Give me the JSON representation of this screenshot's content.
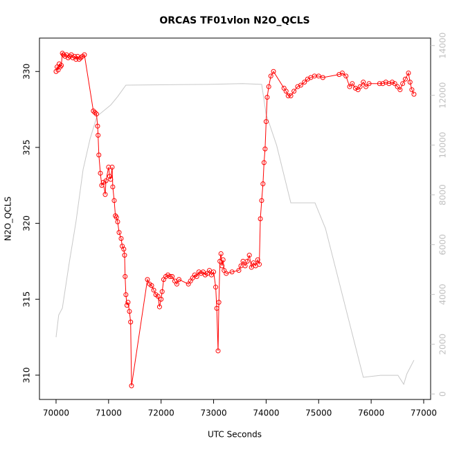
{
  "chart_data": {
    "type": "line",
    "title": "ORCAS TF01vlon N2O_QCLS",
    "x_label": "UTC Seconds",
    "y_label": "N2O_QCLS",
    "xlim": [
      69684,
      77132
    ],
    "xticks": [
      70000,
      71000,
      72000,
      73000,
      74000,
      75000,
      76000,
      77000
    ],
    "ylim": [
      308.4,
      332.2
    ],
    "yticks": [
      310,
      315,
      320,
      325,
      330
    ],
    "y2lim": [
      -220,
      14300
    ],
    "y2ticks": [
      0,
      2000,
      4000,
      6000,
      8000,
      10000,
      12000,
      14000
    ],
    "y2_color": "#c0c0c0",
    "series": [
      {
        "color": "#c8c8c8",
        "axis": "y2",
        "markers": false,
        "x": [
          70000,
          70050,
          70120,
          70250,
          70380,
          70515,
          70650,
          70780,
          71040,
          71170,
          71330,
          72890,
          73550,
          73915,
          74000,
          74200,
          74470,
          74930,
          75130,
          75850,
          76180,
          76510,
          76620,
          76680,
          76815
        ],
        "values": [
          2280,
          3170,
          3450,
          5260,
          6930,
          9020,
          10270,
          11160,
          11610,
          11940,
          12410,
          12440,
          12470,
          12440,
          11240,
          9990,
          7680,
          7680,
          6650,
          670,
          750,
          750,
          390,
          810,
          1360
        ]
      },
      {
        "color": "#ff0000",
        "markers": true,
        "x": [
          70000,
          70020,
          70040,
          70060,
          70080,
          70100,
          70120,
          70140,
          70170,
          70200,
          70230,
          70260,
          70290,
          70320,
          70350,
          70380,
          70410,
          70440,
          70470,
          70500,
          70540,
          70710,
          70740,
          70770,
          70791,
          70800,
          70815,
          70844,
          70870,
          70900,
          70936,
          70950,
          71000,
          71020,
          71040,
          71068,
          71080,
          71107,
          71130,
          71150,
          71173,
          71200,
          71239,
          71260,
          71290,
          71305,
          71315,
          71330,
          71350,
          71370,
          71397,
          71420,
          71437,
          71740,
          71780,
          71820,
          71860,
          71900,
          71940,
          71970,
          72000,
          72020,
          72050,
          72090,
          72130,
          72170,
          72210,
          72260,
          72300,
          72340,
          72520,
          72560,
          72600,
          72640,
          72680,
          72720,
          72760,
          72800,
          72840,
          72880,
          72920,
          72960,
          73000,
          73040,
          73060,
          73085,
          73100,
          73120,
          73140,
          73160,
          73180,
          73200,
          73240,
          73350,
          73480,
          73520,
          73560,
          73600,
          73640,
          73680,
          73720,
          73760,
          73800,
          73840,
          73870,
          73890,
          73915,
          73940,
          73960,
          73980,
          74000,
          74020,
          74050,
          74090,
          74140,
          74340,
          74380,
          74420,
          74470,
          74530,
          74600,
          74660,
          74730,
          74790,
          74850,
          74920,
          75000,
          75080,
          75390,
          75450,
          75520,
          75590,
          75640,
          75700,
          75750,
          75790,
          75850,
          75900,
          75960,
          76160,
          76220,
          76280,
          76340,
          76400,
          76450,
          76500,
          76550,
          76600,
          76650,
          76710,
          76740,
          76775,
          76815
        ],
        "values": [
          330.0,
          330.3,
          330.1,
          330.5,
          330.3,
          330.4,
          331.2,
          331.1,
          331.0,
          331.1,
          330.9,
          331.0,
          331.1,
          330.9,
          331.0,
          330.8,
          331.0,
          330.8,
          330.9,
          331.0,
          331.1,
          327.4,
          327.3,
          327.2,
          326.4,
          325.8,
          324.5,
          323.3,
          322.5,
          322.7,
          321.9,
          322.8,
          323.7,
          323.1,
          322.9,
          323.7,
          322.4,
          321.5,
          320.5,
          320.4,
          320.1,
          319.4,
          319.0,
          318.5,
          318.3,
          317.9,
          316.5,
          315.3,
          314.6,
          314.8,
          314.2,
          313.5,
          309.3,
          316.3,
          316.0,
          315.9,
          315.6,
          315.3,
          315.2,
          314.5,
          315.0,
          315.5,
          316.3,
          316.5,
          316.6,
          316.5,
          316.5,
          316.2,
          316.0,
          316.3,
          316.0,
          316.2,
          316.4,
          316.6,
          316.5,
          316.8,
          316.7,
          316.8,
          316.6,
          316.7,
          316.9,
          316.6,
          316.8,
          315.8,
          314.4,
          311.6,
          314.8,
          317.5,
          318.0,
          317.2,
          317.6,
          316.9,
          316.7,
          316.8,
          316.9,
          317.2,
          317.5,
          317.2,
          317.5,
          317.9,
          317.1,
          317.4,
          317.2,
          317.6,
          317.3,
          320.3,
          321.5,
          322.6,
          324.0,
          324.9,
          326.7,
          328.3,
          329.0,
          329.7,
          330.0,
          328.9,
          328.7,
          328.4,
          328.4,
          328.7,
          329.0,
          329.1,
          329.3,
          329.5,
          329.6,
          329.7,
          329.7,
          329.6,
          329.8,
          329.9,
          329.7,
          329.0,
          329.2,
          328.9,
          328.8,
          329.0,
          329.3,
          329.0,
          329.2,
          329.2,
          329.2,
          329.3,
          329.2,
          329.3,
          329.2,
          329.0,
          328.8,
          329.2,
          329.5,
          329.9,
          329.3,
          328.8,
          328.5
        ]
      }
    ]
  }
}
